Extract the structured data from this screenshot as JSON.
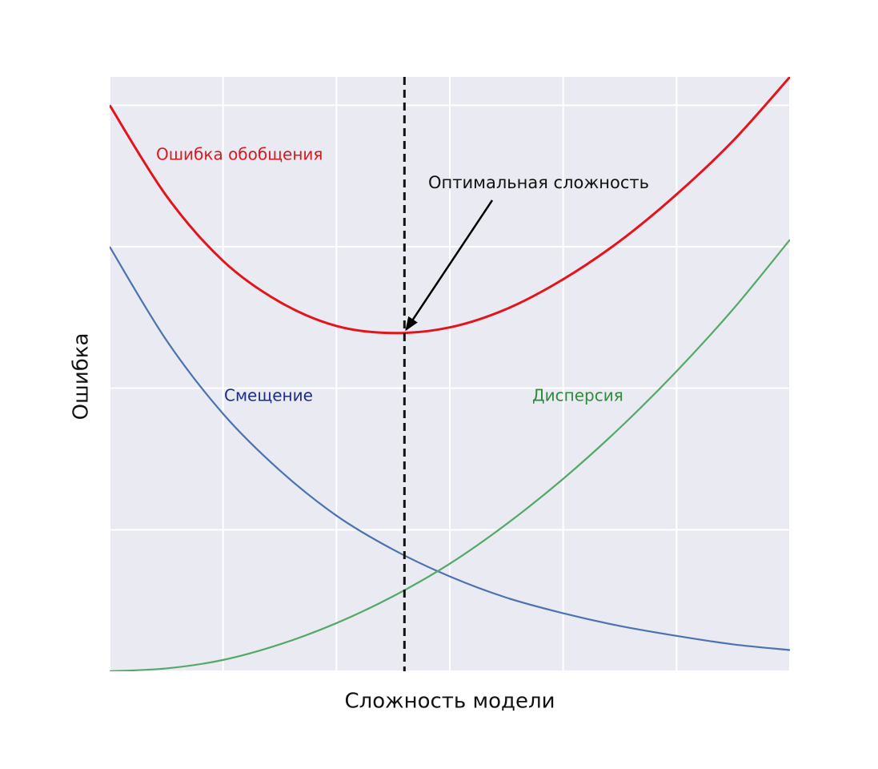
{
  "chart_data": {
    "type": "line",
    "xlabel": "Сложность модели",
    "ylabel": "Ошибка",
    "x": [
      0,
      0.5,
      1,
      1.5,
      2,
      2.5,
      3,
      3.5,
      4,
      4.5,
      5,
      5.5,
      6
    ],
    "series": [
      {
        "name": "Ошибка обобщения",
        "color": "#e3141c",
        "label_color": "#d61a20",
        "width": 3,
        "values": [
          4.0,
          3.36,
          2.9,
          2.61,
          2.44,
          2.39,
          2.43,
          2.56,
          2.77,
          3.04,
          3.37,
          3.75,
          4.2
        ]
      },
      {
        "name": "Смещение",
        "color": "#4c72b0",
        "label_color": "#1c2d86",
        "width": 2.2,
        "values": [
          3.0,
          2.34,
          1.82,
          1.42,
          1.1,
          0.86,
          0.67,
          0.52,
          0.41,
          0.32,
          0.25,
          0.19,
          0.15
        ]
      },
      {
        "name": "Дисперсия",
        "color": "#55a868",
        "label_color": "#2f8a3c",
        "width": 2.2,
        "values": [
          0,
          0.02,
          0.08,
          0.19,
          0.34,
          0.53,
          0.76,
          1.04,
          1.36,
          1.72,
          2.12,
          2.56,
          3.05
        ]
      }
    ],
    "optimum": {
      "label": "Оптимальная сложность",
      "x": 2.6,
      "y": 2.39
    },
    "xlim": [
      0,
      6
    ],
    "ylim": [
      0,
      4.2
    ],
    "xticks": [
      0,
      1,
      2,
      3,
      4,
      5,
      6
    ],
    "yticks": [
      0,
      1,
      2,
      3,
      4
    ],
    "grid": true,
    "background": "#eaeaf2"
  }
}
